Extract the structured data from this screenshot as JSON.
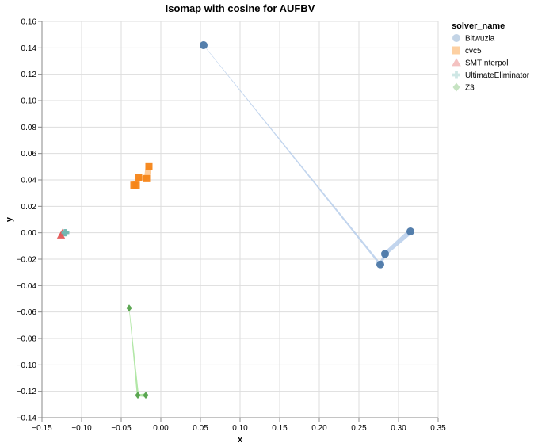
{
  "chart_data": {
    "type": "scatter",
    "title": "Isomap with cosine for AUFBV",
    "xlabel": "x",
    "ylabel": "y",
    "xlim": [
      -0.15,
      0.35
    ],
    "ylim": [
      -0.14,
      0.16
    ],
    "x_ticks": [
      -0.15,
      -0.1,
      -0.05,
      0.0,
      0.05,
      0.1,
      0.15,
      0.2,
      0.25,
      0.3,
      0.35
    ],
    "x_tick_labels": [
      "−0.15",
      "−0.10",
      "−0.05",
      "0.00",
      "0.05",
      "0.10",
      "0.15",
      "0.20",
      "0.25",
      "0.30",
      "0.35"
    ],
    "y_ticks": [
      0.16,
      0.14,
      0.12,
      0.1,
      0.08,
      0.06,
      0.04,
      0.02,
      0.0,
      -0.02,
      -0.04,
      -0.06,
      -0.08,
      -0.1,
      -0.12,
      -0.14
    ],
    "y_tick_labels": [
      "0.16",
      "0.14",
      "0.12",
      "0.10",
      "0.08",
      "0.06",
      "0.04",
      "0.02",
      "0.00",
      "−0.02",
      "−0.04",
      "−0.06",
      "−0.08",
      "−0.10",
      "−0.12",
      "−0.14"
    ],
    "grid": true,
    "legend": {
      "title": "solver_name",
      "position": "top-right"
    },
    "series": [
      {
        "name": "Bitwuzla",
        "shape": "circle",
        "color": "#4c78a8",
        "legend_color": "#c3d4e6",
        "trail_color": "#aec7e8",
        "points": [
          [
            0.054,
            0.142
          ],
          [
            0.277,
            -0.024
          ],
          [
            0.283,
            -0.016
          ],
          [
            0.315,
            0.001
          ]
        ]
      },
      {
        "name": "cvc5",
        "shape": "square",
        "color": "#f58518",
        "legend_color": "#fdd0a2",
        "trail_color": "#ffbb78",
        "points": [
          [
            -0.034,
            0.036
          ],
          [
            -0.031,
            0.036
          ],
          [
            -0.028,
            0.042
          ],
          [
            -0.018,
            0.041
          ],
          [
            -0.015,
            0.05
          ]
        ]
      },
      {
        "name": "SMTInterpol",
        "shape": "triangle",
        "color": "#e45756",
        "legend_color": "#f4c2c1",
        "trail_color": "#ff9896",
        "points": [
          [
            -0.126,
            -0.002
          ],
          [
            -0.124,
            0.0
          ]
        ]
      },
      {
        "name": "UltimateEliminator",
        "shape": "cross",
        "color": "#72b7b2",
        "legend_color": "#cfe7e5",
        "trail_color": "#9edae5",
        "points": [
          [
            -0.121,
            0.0
          ],
          [
            -0.12,
            0.0
          ]
        ]
      },
      {
        "name": "Z3",
        "shape": "diamond",
        "color": "#54a24b",
        "legend_color": "#c6e3c2",
        "trail_color": "#98df8a",
        "points": [
          [
            -0.04,
            -0.057
          ],
          [
            -0.029,
            -0.123
          ],
          [
            -0.019,
            -0.123
          ]
        ]
      }
    ]
  }
}
